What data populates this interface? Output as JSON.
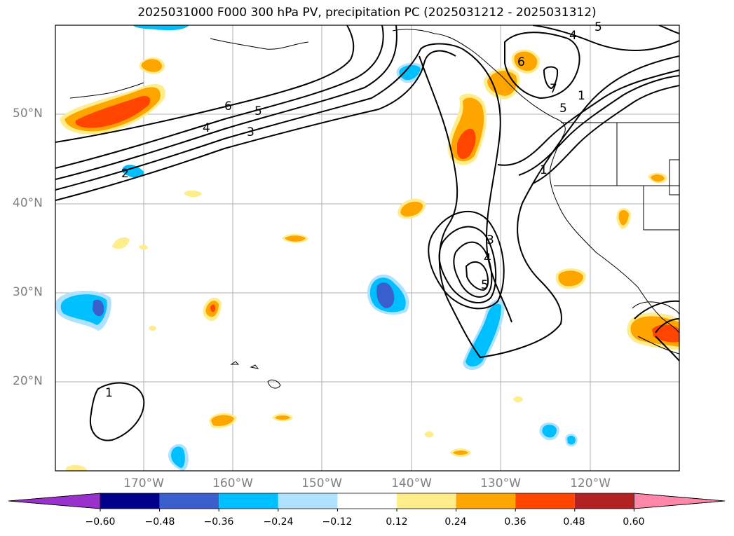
{
  "title": "2025031000 F000 300 hPa PV, precipitation PC (2025031212 - 2025031312)",
  "map": {
    "lat_labels": [
      "50°N",
      "40°N",
      "30°N",
      "20°N"
    ],
    "lon_labels": [
      "170°W",
      "160°W",
      "150°W",
      "140°W",
      "130°W",
      "120°W"
    ],
    "contour_labels": [
      "6",
      "5",
      "4",
      "3",
      "2",
      "1",
      "1",
      "3",
      "4",
      "5",
      "4",
      "5",
      "6",
      "7",
      "1",
      "5"
    ],
    "colors": {
      "c_neg_060": "#9932cc",
      "c_neg_048": "#00008b",
      "c_neg_036": "#3a5fcd",
      "c_neg_024": "#00bfff",
      "c_neg_012": "#b0e2ff",
      "c_pos_012": "#ffec8b",
      "c_pos_024": "#ffa500",
      "c_pos_036": "#ff4500",
      "c_pos_048": "#b22222",
      "c_pos_060": "#ff88aa"
    }
  },
  "colorbar": {
    "ticks": [
      "−0.60",
      "−0.48",
      "−0.36",
      "−0.24",
      "−0.12",
      "0.12",
      "0.24",
      "0.36",
      "0.48",
      "0.60"
    ],
    "colors": [
      "#9932cc",
      "#00008b",
      "#3a5fcd",
      "#00bfff",
      "#b0e2ff",
      "#ffffff",
      "#ffec8b",
      "#ffa500",
      "#ff4500",
      "#b22222",
      "#ff88aa"
    ]
  }
}
